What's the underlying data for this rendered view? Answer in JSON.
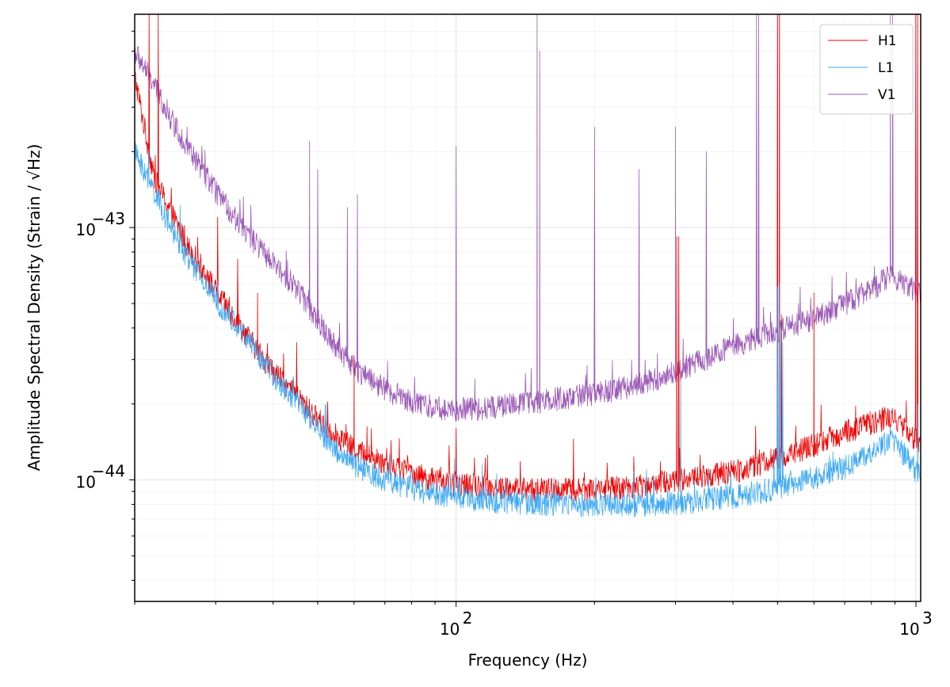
{
  "chart_data": {
    "type": "line",
    "title": "",
    "xlabel": "Frequency (Hz)",
    "ylabel": "Amplitude Spectral Density (Strain / √Hz)",
    "x_scale": "log",
    "y_scale": "log",
    "xlim": [
      20,
      1024
    ],
    "ylim": [
      3.3e-45,
      7e-43
    ],
    "grid": true,
    "legend_position": "top-right",
    "x_ticks": [
      {
        "value": 100,
        "label": "10",
        "exp": "2"
      },
      {
        "value": 1000,
        "label": "10",
        "exp": "3"
      }
    ],
    "y_ticks": [
      {
        "value": 1e-44,
        "label": "10",
        "exp": "−44"
      },
      {
        "value": 1e-43,
        "label": "10",
        "exp": "−43"
      }
    ],
    "series": [
      {
        "name": "H1",
        "color": "#ee0000",
        "baseline": [
          [
            20,
            4e-43
          ],
          [
            21,
            2.5e-43
          ],
          [
            22,
            1.6e-43
          ],
          [
            24,
            1.15e-43
          ],
          [
            26,
            8.5e-44
          ],
          [
            28,
            7e-44
          ],
          [
            30,
            5.6e-44
          ],
          [
            33,
            4.4e-44
          ],
          [
            36,
            3.5e-44
          ],
          [
            40,
            2.7e-44
          ],
          [
            45,
            2.15e-44
          ],
          [
            50,
            1.75e-44
          ],
          [
            55,
            1.5e-44
          ],
          [
            60,
            1.33e-44
          ],
          [
            70,
            1.17e-44
          ],
          [
            80,
            1.07e-44
          ],
          [
            90,
            1e-44
          ],
          [
            100,
            9.7e-45
          ],
          [
            120,
            9.4e-45
          ],
          [
            150,
            9.2e-45
          ],
          [
            200,
            9.2e-45
          ],
          [
            250,
            9.5e-45
          ],
          [
            300,
            1e-44
          ],
          [
            400,
            1.08e-44
          ],
          [
            500,
            1.22e-44
          ],
          [
            600,
            1.38e-44
          ],
          [
            700,
            1.55e-44
          ],
          [
            800,
            1.7e-44
          ],
          [
            880,
            1.78e-44
          ],
          [
            950,
            1.6e-44
          ],
          [
            1024,
            1.38e-44
          ]
        ],
        "peaks": [
          [
            21.5,
            7e-43
          ],
          [
            22.5,
            7e-43
          ],
          [
            30.3,
            1.1e-43
          ],
          [
            33.5,
            7.5e-44
          ],
          [
            37,
            5.5e-44
          ],
          [
            45,
            3.5e-44
          ],
          [
            60,
            3.1e-44
          ],
          [
            100,
            1.6e-44
          ],
          [
            180,
            1.45e-44
          ],
          [
            302,
            9.2e-44
          ],
          [
            305,
            9.2e-44
          ],
          [
            500,
            7e-43
          ],
          [
            505,
            7e-43
          ],
          [
            510,
            4.5e-44
          ],
          [
            600,
            5.5e-44
          ],
          [
            999,
            7e-43
          ],
          [
            1009,
            7e-43
          ]
        ]
      },
      {
        "name": "L1",
        "color": "#3fa9f5",
        "baseline": [
          [
            20,
            2e-43
          ],
          [
            22,
            1.4e-43
          ],
          [
            24,
            1e-43
          ],
          [
            26,
            7.7e-44
          ],
          [
            28,
            6.2e-44
          ],
          [
            30,
            5.2e-44
          ],
          [
            33,
            4.2e-44
          ],
          [
            36,
            3.4e-44
          ],
          [
            40,
            2.6e-44
          ],
          [
            45,
            2.05e-44
          ],
          [
            50,
            1.6e-44
          ],
          [
            55,
            1.3e-44
          ],
          [
            60,
            1.15e-44
          ],
          [
            70,
            1e-44
          ],
          [
            80,
            9.3e-45
          ],
          [
            90,
            8.8e-45
          ],
          [
            100,
            8.5e-45
          ],
          [
            120,
            8.3e-45
          ],
          [
            150,
            8.1e-45
          ],
          [
            200,
            8e-45
          ],
          [
            250,
            8e-45
          ],
          [
            300,
            8.1e-45
          ],
          [
            400,
            8.6e-45
          ],
          [
            500,
            9.3e-45
          ],
          [
            600,
            1.02e-44
          ],
          [
            700,
            1.13e-44
          ],
          [
            800,
            1.28e-44
          ],
          [
            880,
            1.45e-44
          ],
          [
            950,
            1.25e-44
          ],
          [
            1024,
            1.02e-44
          ]
        ],
        "peaks": [
          [
            308,
            2.5e-44
          ],
          [
            500,
            5.8e-44
          ],
          [
            504,
            6e-44
          ],
          [
            508,
            4.3e-44
          ],
          [
            513,
            3.5e-44
          ],
          [
            1010,
            2e-44
          ]
        ]
      },
      {
        "name": "V1",
        "color": "#9b59b6",
        "baseline": [
          [
            20,
            5e-43
          ],
          [
            22,
            3.7e-43
          ],
          [
            24,
            2.7e-43
          ],
          [
            26,
            2.1e-43
          ],
          [
            28,
            1.7e-43
          ],
          [
            30,
            1.4e-43
          ],
          [
            33,
            1.1e-43
          ],
          [
            36,
            9e-44
          ],
          [
            40,
            7.2e-44
          ],
          [
            45,
            5.8e-44
          ],
          [
            50,
            4.3e-44
          ],
          [
            55,
            3.4e-44
          ],
          [
            60,
            2.8e-44
          ],
          [
            70,
            2.3e-44
          ],
          [
            80,
            2.05e-44
          ],
          [
            90,
            1.95e-44
          ],
          [
            100,
            1.9e-44
          ],
          [
            120,
            1.95e-44
          ],
          [
            150,
            2.05e-44
          ],
          [
            200,
            2.2e-44
          ],
          [
            250,
            2.4e-44
          ],
          [
            300,
            2.7e-44
          ],
          [
            350,
            3.05e-44
          ],
          [
            400,
            3.4e-44
          ],
          [
            500,
            3.9e-44
          ],
          [
            600,
            4.4e-44
          ],
          [
            700,
            5e-44
          ],
          [
            800,
            5.7e-44
          ],
          [
            880,
            6.5e-44
          ],
          [
            950,
            6e-44
          ],
          [
            1024,
            5.4e-44
          ]
        ],
        "peaks": [
          [
            26,
            2.5e-43
          ],
          [
            28,
            2.1e-43
          ],
          [
            48,
            2.2e-43
          ],
          [
            50,
            1.7e-43
          ],
          [
            58,
            1.2e-43
          ],
          [
            61,
            1.35e-43
          ],
          [
            100,
            2.1e-43
          ],
          [
            150,
            7e-43
          ],
          [
            152,
            5e-43
          ],
          [
            200,
            2.5e-43
          ],
          [
            250,
            1.7e-43
          ],
          [
            300,
            2.5e-43
          ],
          [
            350,
            2e-43
          ],
          [
            450,
            7e-43
          ],
          [
            455,
            7e-43
          ],
          [
            500,
            7e-43
          ],
          [
            505,
            7e-43
          ],
          [
            880,
            7e-43
          ],
          [
            890,
            7e-43
          ],
          [
            1000,
            7e-43
          ]
        ]
      }
    ]
  }
}
